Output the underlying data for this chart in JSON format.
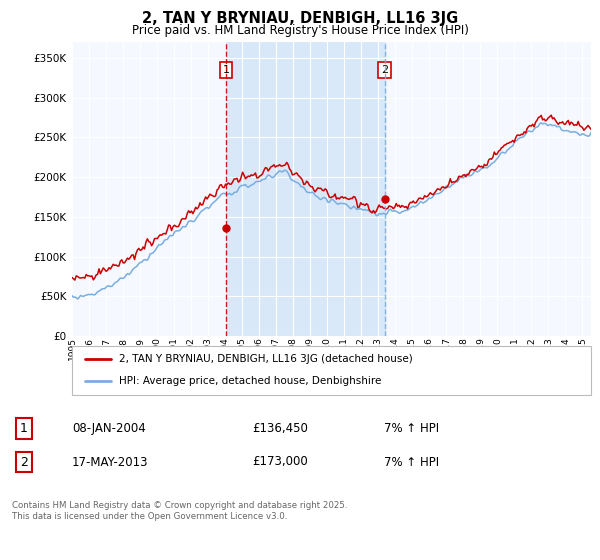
{
  "title": "2, TAN Y BRYNIAU, DENBIGH, LL16 3JG",
  "subtitle": "Price paid vs. HM Land Registry's House Price Index (HPI)",
  "legend_line1": "2, TAN Y BRYNIAU, DENBIGH, LL16 3JG (detached house)",
  "legend_line2": "HPI: Average price, detached house, Denbighshire",
  "transaction1_date": "08-JAN-2004",
  "transaction1_price": "£136,450",
  "transaction1_hpi": "7% ↑ HPI",
  "transaction2_date": "17-MAY-2013",
  "transaction2_price": "£173,000",
  "transaction2_hpi": "7% ↑ HPI",
  "footer": "Contains HM Land Registry data © Crown copyright and database right 2025.\nThis data is licensed under the Open Government Licence v3.0.",
  "vline1_x": 2004.04,
  "vline2_x": 2013.38,
  "dot1_y": 136450,
  "dot2_y": 173000,
  "ylim": [
    0,
    370000
  ],
  "xlim_start": 1995,
  "xlim_end": 2025.5,
  "hpi_color": "#7aade0",
  "price_color": "#cc0000",
  "vline1_color": "#cc0000",
  "vline2_color": "#7aade0",
  "shade_color": "#d8e8f8",
  "bg_color": "#ffffff",
  "plot_bg": "#f5f8ff",
  "grid_color": "#cccccc"
}
